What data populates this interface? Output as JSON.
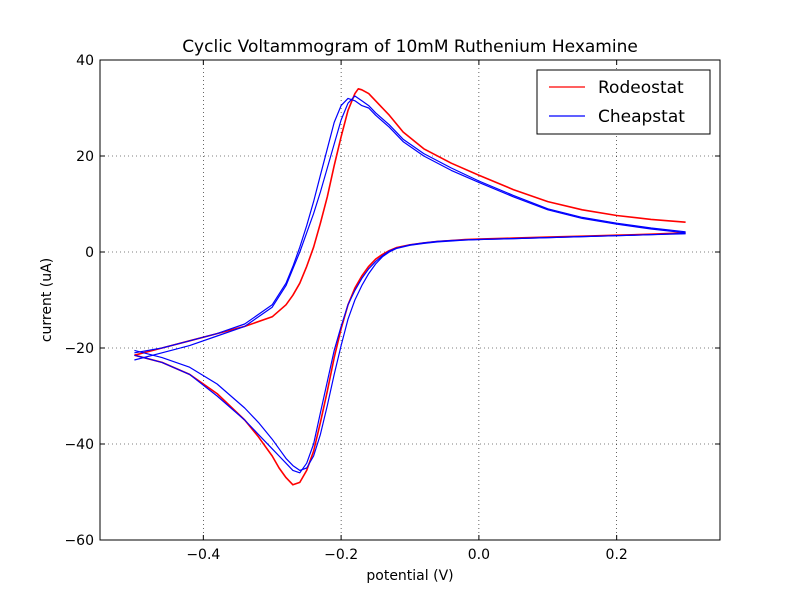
{
  "chart_data": {
    "type": "line",
    "title": "Cyclic Voltammogram of 10mM Ruthenium Hexamine",
    "xlabel": "potential (V)",
    "ylabel": "current (uA)",
    "xlim": [
      -0.55,
      0.35
    ],
    "ylim": [
      -60,
      40
    ],
    "grid": true,
    "legend_position": "top-right",
    "x_ticks": [
      -0.4,
      -0.2,
      0.0,
      0.2
    ],
    "x_tick_labels": [
      "−0.4",
      "−0.2",
      "0.0",
      "0.2"
    ],
    "y_ticks": [
      -60,
      -40,
      -20,
      0,
      20,
      40
    ],
    "y_tick_labels": [
      "−60",
      "−40",
      "−20",
      "0",
      "20",
      "40"
    ],
    "series": [
      {
        "name": "Rodeostat",
        "color": "#ff0000",
        "cycles": [
          {
            "potential_V": [
              -0.5,
              -0.46,
              -0.42,
              -0.38,
              -0.34,
              -0.32,
              -0.3,
              -0.29,
              -0.28,
              -0.27,
              -0.26,
              -0.25,
              -0.24,
              -0.23,
              -0.22,
              -0.21,
              -0.2,
              -0.19,
              -0.18,
              -0.17,
              -0.16,
              -0.15,
              -0.14,
              -0.13,
              -0.12,
              -0.1,
              -0.08,
              -0.06,
              -0.04,
              -0.02,
              0.0,
              0.05,
              0.1,
              0.15,
              0.2,
              0.25,
              0.3
            ],
            "current_uA": [
              -21.5,
              -23.0,
              -25.5,
              -29.5,
              -35.0,
              -38.5,
              -42.5,
              -45.0,
              -47.0,
              -48.5,
              -48.0,
              -45.5,
              -41.5,
              -35.5,
              -29.0,
              -22.0,
              -16.0,
              -11.0,
              -7.5,
              -5.0,
              -3.0,
              -1.5,
              -0.5,
              0.3,
              0.9,
              1.5,
              1.9,
              2.2,
              2.4,
              2.6,
              2.7,
              2.9,
              3.1,
              3.3,
              3.5,
              3.7,
              4.0
            ]
          },
          {
            "potential_V": [
              0.3,
              0.25,
              0.2,
              0.15,
              0.1,
              0.05,
              0.0,
              -0.04,
              -0.08,
              -0.11,
              -0.13,
              -0.15,
              -0.16,
              -0.17,
              -0.175,
              -0.18,
              -0.19,
              -0.2,
              -0.21,
              -0.22,
              -0.23,
              -0.24,
              -0.25,
              -0.26,
              -0.27,
              -0.28,
              -0.3,
              -0.34,
              -0.38,
              -0.42,
              -0.46,
              -0.5
            ],
            "current_uA": [
              6.2,
              6.8,
              7.6,
              8.8,
              10.5,
              13.0,
              16.0,
              18.5,
              21.5,
              25.0,
              28.5,
              31.5,
              33.0,
              33.8,
              34.0,
              33.0,
              29.5,
              24.0,
              18.0,
              11.5,
              6.0,
              1.0,
              -3.0,
              -6.5,
              -9.0,
              -11.0,
              -13.5,
              -15.5,
              -17.0,
              -18.5,
              -20.0,
              -21.5
            ]
          }
        ]
      },
      {
        "name": "Cheapstat",
        "color": "#0000ff",
        "cycles": [
          {
            "potential_V": [
              -0.5,
              -0.46,
              -0.42,
              -0.38,
              -0.34,
              -0.32,
              -0.3,
              -0.29,
              -0.28,
              -0.27,
              -0.26,
              -0.25,
              -0.24,
              -0.23,
              -0.22,
              -0.21,
              -0.2,
              -0.19,
              -0.18,
              -0.17,
              -0.16,
              -0.15,
              -0.14,
              -0.13,
              -0.12,
              -0.1,
              -0.08,
              -0.06,
              -0.04,
              -0.02,
              0.0,
              0.05,
              0.1,
              0.15,
              0.2,
              0.25,
              0.3
            ],
            "current_uA": [
              -20.5,
              -22.0,
              -24.0,
              -27.5,
              -32.5,
              -35.5,
              -39.0,
              -41.0,
              -43.0,
              -44.5,
              -45.5,
              -45.0,
              -42.5,
              -38.0,
              -32.0,
              -25.5,
              -19.5,
              -14.0,
              -10.0,
              -7.0,
              -4.5,
              -2.5,
              -1.0,
              0.0,
              0.7,
              1.4,
              1.8,
              2.1,
              2.3,
              2.5,
              2.6,
              2.8,
              3.0,
              3.2,
              3.4,
              3.6,
              3.8
            ]
          },
          {
            "potential_V": [
              0.3,
              0.25,
              0.2,
              0.15,
              0.1,
              0.05,
              0.0,
              -0.04,
              -0.08,
              -0.11,
              -0.13,
              -0.15,
              -0.16,
              -0.17,
              -0.18,
              -0.19,
              -0.2,
              -0.21,
              -0.22,
              -0.23,
              -0.24,
              -0.25,
              -0.26,
              -0.27,
              -0.28,
              -0.3,
              -0.34,
              -0.38,
              -0.42,
              -0.46,
              -0.5
            ],
            "current_uA": [
              4.0,
              4.8,
              5.8,
              7.0,
              8.8,
              11.5,
              14.5,
              17.0,
              20.0,
              23.0,
              26.0,
              28.5,
              30.0,
              30.5,
              31.5,
              32.0,
              30.5,
              27.0,
              21.5,
              16.0,
              10.5,
              5.5,
              1.0,
              -3.0,
              -6.5,
              -11.0,
              -15.0,
              -17.0,
              -18.5,
              -20.0,
              -21.0
            ]
          },
          {
            "potential_V": [
              -0.5,
              -0.46,
              -0.42,
              -0.38,
              -0.34,
              -0.32,
              -0.3,
              -0.29,
              -0.28,
              -0.27,
              -0.26,
              -0.25,
              -0.24,
              -0.23,
              -0.22,
              -0.21,
              -0.2,
              -0.19,
              -0.18,
              -0.17,
              -0.16,
              -0.15,
              -0.14,
              -0.13,
              -0.12,
              -0.1,
              -0.08,
              -0.06,
              -0.04,
              -0.02,
              0.0,
              0.05,
              0.1,
              0.15,
              0.2,
              0.25,
              0.3
            ],
            "current_uA": [
              -21.5,
              -23.0,
              -25.5,
              -30.0,
              -35.0,
              -38.0,
              -41.0,
              -42.5,
              -44.0,
              -45.5,
              -46.0,
              -44.0,
              -40.0,
              -33.5,
              -27.0,
              -20.5,
              -15.5,
              -11.0,
              -8.0,
              -5.5,
              -3.5,
              -2.0,
              -0.8,
              0.2,
              0.8,
              1.5,
              1.9,
              2.2,
              2.4,
              2.5,
              2.6,
              2.8,
              3.0,
              3.2,
              3.4,
              3.6,
              3.9
            ]
          },
          {
            "potential_V": [
              0.3,
              0.25,
              0.2,
              0.15,
              0.1,
              0.05,
              0.0,
              -0.04,
              -0.08,
              -0.11,
              -0.13,
              -0.15,
              -0.16,
              -0.17,
              -0.18,
              -0.19,
              -0.2,
              -0.21,
              -0.22,
              -0.23,
              -0.24,
              -0.25,
              -0.26,
              -0.27,
              -0.28,
              -0.3,
              -0.34,
              -0.38,
              -0.42,
              -0.46,
              -0.5
            ],
            "current_uA": [
              4.2,
              5.0,
              6.0,
              7.2,
              9.0,
              11.8,
              14.8,
              17.5,
              20.5,
              23.5,
              26.5,
              29.0,
              30.5,
              31.5,
              32.5,
              31.0,
              27.5,
              22.5,
              17.5,
              12.5,
              8.0,
              4.0,
              0.0,
              -3.5,
              -7.0,
              -11.5,
              -15.5,
              -17.5,
              -19.5,
              -21.0,
              -22.5
            ]
          }
        ]
      }
    ]
  }
}
